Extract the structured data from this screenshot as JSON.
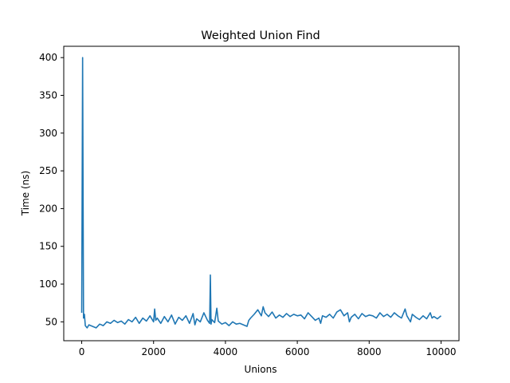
{
  "chart_data": {
    "type": "line",
    "title": "Weighted Union Find",
    "xlabel": "Unions",
    "ylabel": "Time (ns)",
    "xlim": [
      -500,
      10500
    ],
    "ylim": [
      25,
      415
    ],
    "xticks": [
      0,
      2000,
      4000,
      6000,
      8000,
      10000
    ],
    "yticks": [
      50,
      100,
      150,
      200,
      250,
      300,
      350,
      400
    ],
    "grid": false,
    "series": [
      {
        "color": "#1f77b4",
        "x": [
          0,
          25,
          50,
          75,
          100,
          150,
          200,
          300,
          400,
          500,
          600,
          700,
          800,
          900,
          1000,
          1100,
          1200,
          1300,
          1400,
          1500,
          1600,
          1700,
          1800,
          1900,
          2000,
          2030,
          2060,
          2100,
          2200,
          2300,
          2400,
          2500,
          2600,
          2700,
          2800,
          2900,
          3000,
          3100,
          3150,
          3200,
          3300,
          3400,
          3500,
          3560,
          3580,
          3600,
          3620,
          3700,
          3760,
          3800,
          3900,
          4000,
          4100,
          4200,
          4300,
          4400,
          4500,
          4600,
          4650,
          4700,
          4800,
          4900,
          5000,
          5050,
          5100,
          5200,
          5300,
          5400,
          5500,
          5600,
          5700,
          5800,
          5900,
          6000,
          6100,
          6200,
          6300,
          6400,
          6500,
          6600,
          6650,
          6700,
          6800,
          6900,
          7000,
          7100,
          7200,
          7300,
          7400,
          7450,
          7500,
          7600,
          7700,
          7800,
          7900,
          8000,
          8100,
          8200,
          8300,
          8400,
          8500,
          8600,
          8700,
          8800,
          8900,
          9000,
          9050,
          9100,
          9150,
          9200,
          9300,
          9400,
          9500,
          9600,
          9700,
          9750,
          9800,
          9900,
          10000
        ],
        "values": [
          62,
          400,
          55,
          60,
          45,
          42,
          46,
          44,
          42,
          47,
          45,
          50,
          48,
          52,
          49,
          51,
          47,
          53,
          50,
          56,
          48,
          55,
          51,
          58,
          50,
          67,
          52,
          55,
          48,
          57,
          50,
          59,
          47,
          56,
          52,
          58,
          48,
          61,
          46,
          54,
          50,
          62,
          52,
          48,
          112,
          47,
          53,
          49,
          68,
          51,
          47,
          49,
          45,
          50,
          47,
          48,
          46,
          44,
          52,
          55,
          60,
          66,
          58,
          70,
          62,
          57,
          63,
          55,
          59,
          56,
          61,
          57,
          60,
          58,
          59,
          54,
          62,
          57,
          52,
          55,
          48,
          58,
          56,
          60,
          55,
          63,
          66,
          58,
          62,
          50,
          56,
          60,
          54,
          61,
          57,
          59,
          58,
          55,
          62,
          57,
          60,
          56,
          62,
          58,
          55,
          67,
          58,
          54,
          50,
          60,
          56,
          53,
          58,
          54,
          62,
          55,
          57,
          54,
          58
        ]
      }
    ]
  }
}
